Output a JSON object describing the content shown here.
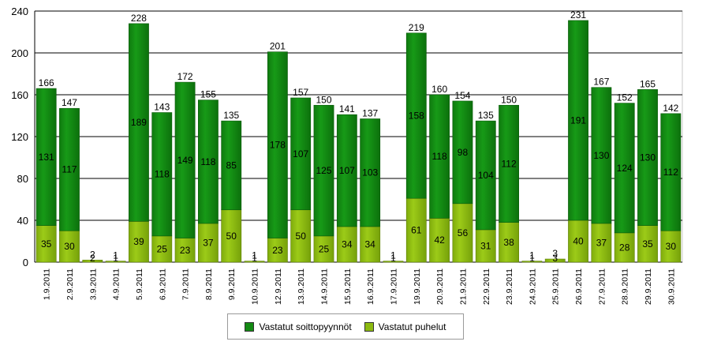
{
  "chart_data": {
    "type": "bar",
    "stacked": true,
    "categories": [
      "1.9.2011",
      "2.9.2011",
      "3.9.2011",
      "4.9.2011",
      "5.9.2011",
      "6.9.2011",
      "7.9.2011",
      "8.9.2011",
      "9.9.2011",
      "10.9.2011",
      "12.9.2011",
      "13.9.2011",
      "14.9.2011",
      "15.9.2011",
      "16.9.2011",
      "17.9.2011",
      "19.9.2011",
      "20.9.2011",
      "21.9.2011",
      "22.9.2011",
      "23.9.2011",
      "24.9.2011",
      "25.9.2011",
      "26.9.2011",
      "27.9.2011",
      "28.9.2011",
      "29.9.2011",
      "30.9.2011"
    ],
    "totals": [
      166,
      147,
      2,
      1,
      228,
      143,
      172,
      155,
      135,
      1,
      201,
      157,
      150,
      141,
      137,
      1,
      219,
      160,
      154,
      135,
      150,
      1,
      3,
      231,
      167,
      152,
      165,
      142
    ],
    "series": [
      {
        "name": "Vastatut soittopyynnöt",
        "color": "#138a13",
        "values": [
          131,
          117,
          0,
          0,
          189,
          118,
          149,
          118,
          85,
          0,
          178,
          107,
          125,
          107,
          103,
          0,
          158,
          118,
          98,
          104,
          112,
          0,
          0,
          191,
          130,
          124,
          130,
          112
        ]
      },
      {
        "name": "Vastatut puhelut",
        "color": "#8cba10",
        "values": [
          35,
          30,
          2,
          1,
          39,
          25,
          23,
          37,
          50,
          1,
          23,
          50,
          25,
          34,
          34,
          1,
          61,
          42,
          56,
          31,
          38,
          1,
          3,
          40,
          37,
          28,
          35,
          30
        ]
      }
    ],
    "ylim": [
      0,
      240
    ],
    "yticks": [
      0,
      40,
      80,
      120,
      160,
      200,
      240
    ],
    "grid": true,
    "legend_position": "bottom"
  }
}
